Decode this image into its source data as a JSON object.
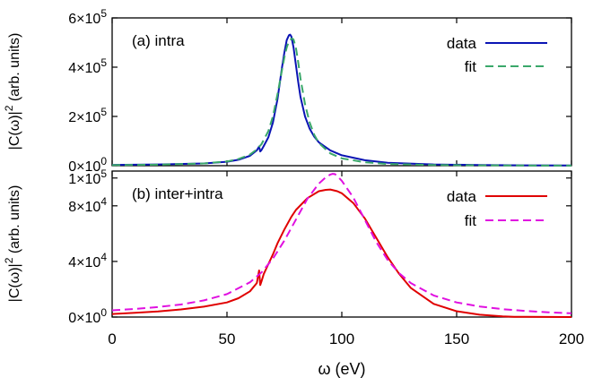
{
  "figure": {
    "xlabel": "ω (eV)"
  },
  "chart_data": [
    {
      "type": "line",
      "panel_label": "(a) intra",
      "ylabel": "|C(ω)|² (arb. units)",
      "xlim": [
        0,
        200
      ],
      "ylim": [
        0,
        600000
      ],
      "yticks": [
        {
          "value": 0,
          "mantissa": "0×10",
          "exp": "0"
        },
        {
          "value": 200000,
          "mantissa": "2×10",
          "exp": "5"
        },
        {
          "value": 400000,
          "mantissa": "4×10",
          "exp": "5"
        },
        {
          "value": 600000,
          "mantissa": "6×10",
          "exp": "5"
        }
      ],
      "legend_position": "top-right",
      "series": [
        {
          "name": "data",
          "color": "#0a14b4",
          "style": "solid",
          "x": [
            0,
            20,
            40,
            50,
            55,
            60,
            63,
            64,
            64.5,
            65,
            66,
            68,
            70,
            72,
            74,
            75,
            76,
            77,
            77.5,
            78,
            79,
            80,
            81,
            82,
            84,
            86,
            88,
            90,
            95,
            100,
            110,
            120,
            140,
            160,
            180,
            200
          ],
          "y": [
            3000,
            5000,
            9000,
            16000,
            24000,
            40000,
            62000,
            78000,
            58000,
            63000,
            80000,
            115000,
            175000,
            270000,
            400000,
            460000,
            510000,
            530000,
            532000,
            525000,
            480000,
            410000,
            340000,
            280000,
            200000,
            150000,
            118000,
            95000,
            62000,
            42000,
            22000,
            12000,
            5000,
            2500,
            1500,
            1000
          ]
        },
        {
          "name": "fit",
          "color": "#3aa86a",
          "style": "dashed",
          "x": [
            0,
            20,
            40,
            50,
            55,
            60,
            63,
            65,
            68,
            70,
            72,
            74,
            75,
            76,
            77,
            78,
            78.5,
            79,
            80,
            81,
            82,
            84,
            86,
            88,
            90,
            95,
            100,
            110,
            120,
            140,
            160,
            180,
            200
          ],
          "y": [
            2000,
            4000,
            9000,
            17000,
            27000,
            45000,
            66000,
            87000,
            140000,
            200000,
            290000,
            390000,
            440000,
            480000,
            505000,
            515000,
            516000,
            512000,
            480000,
            420000,
            355000,
            250000,
            175000,
            125000,
            92000,
            50000,
            30000,
            14000,
            7000,
            3000,
            1500,
            800,
            500
          ]
        }
      ]
    },
    {
      "type": "line",
      "panel_label": "(b) inter+intra",
      "ylabel": "|C(ω)|² (arb. units)",
      "xlim": [
        0,
        200
      ],
      "ylim": [
        0,
        105000
      ],
      "xticks": [
        0,
        50,
        100,
        150,
        200
      ],
      "yticks": [
        {
          "value": 0,
          "mantissa": "0×10",
          "exp": "0"
        },
        {
          "value": 40000,
          "mantissa": "4×10",
          "exp": "4"
        },
        {
          "value": 80000,
          "mantissa": "8×10",
          "exp": "4"
        },
        {
          "value": 100000,
          "mantissa": "1×10",
          "exp": "5"
        }
      ],
      "legend_position": "top-right",
      "series": [
        {
          "name": "data",
          "color": "#e00000",
          "style": "solid",
          "x": [
            0,
            10,
            20,
            30,
            40,
            50,
            55,
            60,
            63,
            64,
            64.5,
            65,
            66,
            68,
            70,
            72,
            75,
            78,
            80,
            85,
            90,
            93,
            95,
            98,
            100,
            105,
            110,
            115,
            120,
            125,
            130,
            140,
            150,
            160,
            170,
            175,
            180,
            190,
            200
          ],
          "y": [
            2200,
            3000,
            4000,
            5500,
            7500,
            10500,
            13500,
            18500,
            24500,
            33500,
            23000,
            25500,
            31000,
            38000,
            45000,
            53000,
            63000,
            72000,
            77000,
            85500,
            90500,
            91500,
            91700,
            90500,
            89000,
            82000,
            71000,
            57000,
            43000,
            31000,
            21000,
            9500,
            4200,
            1700,
            500,
            200,
            100,
            50,
            20
          ]
        },
        {
          "name": "fit",
          "color": "#e010e0",
          "style": "dashed",
          "x": [
            0,
            10,
            20,
            30,
            40,
            50,
            60,
            65,
            70,
            75,
            80,
            85,
            90,
            93,
            95,
            96,
            97,
            98,
            100,
            105,
            110,
            115,
            120,
            125,
            130,
            140,
            150,
            160,
            170,
            180,
            190,
            200
          ],
          "y": [
            4800,
            5800,
            7200,
            9000,
            12000,
            16500,
            25000,
            32000,
            42000,
            55000,
            70000,
            85000,
            96000,
            100500,
            102500,
            103000,
            102800,
            101500,
            98000,
            86000,
            70000,
            54000,
            41000,
            31500,
            24500,
            15500,
            10500,
            7600,
            5700,
            4400,
            3400,
            2700
          ]
        }
      ]
    }
  ]
}
